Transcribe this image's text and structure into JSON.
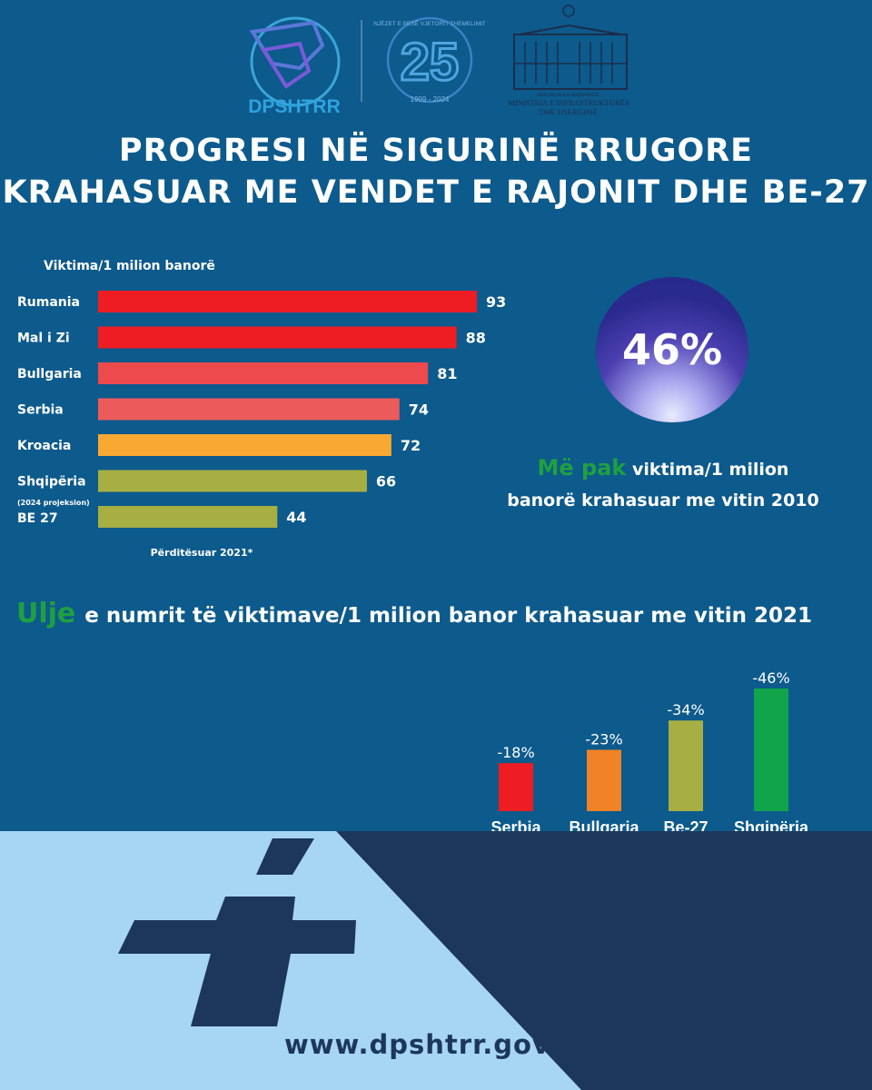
{
  "logos": {
    "dpshtrr": "DPSHTRR",
    "anniversary_number": "25",
    "anniversary_ring": "NJËZET E PESË VJETORI I THEMELIMIT",
    "anniversary_years": "1999 - 2024",
    "ministry_line1": "REPUBLIKA E SHQIPËRISË",
    "ministry_line2": "MINISTRIA E INFRASTRUKTURËS",
    "ministry_line3": "DHE ENERGJISË"
  },
  "title": {
    "line1": "PROGRESI NË SIGURINË RRUGORE",
    "line2": "KRAHASUAR ME VENDET E RAJONIT DHE BE-27"
  },
  "chart_data": [
    {
      "type": "bar",
      "orientation": "horizontal",
      "title": "Viktima/1 milion banorë",
      "categories": [
        "Rumania",
        "Mal i Zi",
        "Bullgaria",
        "Serbia",
        "Kroacia",
        "Shqipëria",
        "BE 27"
      ],
      "values": [
        93,
        88,
        81,
        74,
        72,
        66,
        44
      ],
      "annotations": [
        "(2024 projeksion)"
      ],
      "note": "Përditësuar 2021*",
      "colors": [
        "#ee1d23",
        "#ee1d23",
        "#ec4a4c",
        "#ec5b5b",
        "#f9a932",
        "#a7af43",
        "#a7af43"
      ]
    },
    {
      "type": "bar",
      "orientation": "vertical",
      "categories": [
        "Serbia",
        "Bullgaria",
        "Be-27",
        "Shqipëria"
      ],
      "values": [
        -18,
        -23,
        -34,
        -46
      ],
      "labels": [
        "-18%",
        "-23%",
        "-34%",
        "-46%"
      ],
      "colors": [
        "#ee1d23",
        "#f08228",
        "#a7af43",
        "#12a44a"
      ]
    }
  ],
  "highlight": {
    "value": "46%",
    "caption_emph": "Më pak",
    "caption_rest1": "viktima/1 milion",
    "caption_line2": "banorë krahasuar me vitin 2010"
  },
  "subtitle": {
    "emph": "Ulje",
    "rest": "e numrit të viktimave/1 milion banor krahasuar me vitin 2021"
  },
  "footer": {
    "url": "www.dpshtrr.gov.al"
  },
  "colors": {
    "background": "#0d5a8c",
    "road": "#a6d6f2",
    "road_dark": "#1d375c",
    "accent_green": "#1fa040"
  }
}
